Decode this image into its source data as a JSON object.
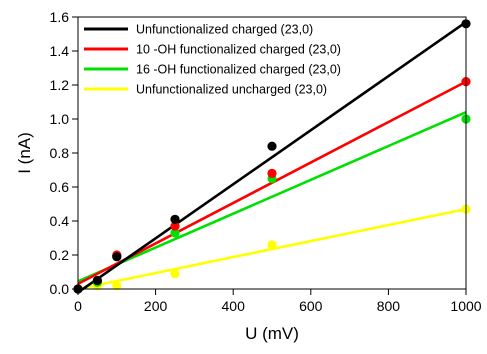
{
  "chart_data": {
    "type": "scatter",
    "xlabel": "U (mV)",
    "ylabel": "I (nA)",
    "xlim": [
      0,
      1000
    ],
    "ylim": [
      0,
      1.6
    ],
    "xticks": [
      "0",
      "200",
      "400",
      "600",
      "800",
      "1000"
    ],
    "yticks": [
      "0.0",
      "0.2",
      "0.4",
      "0.6",
      "0.8",
      "1.0",
      "1.2",
      "1.4",
      "1.6"
    ],
    "legend_position": "top-left",
    "grid": false,
    "series": [
      {
        "name": "Unfunctionalized charged (23,0)",
        "color": "#000000",
        "x": [
          0,
          50,
          100,
          250,
          500,
          1000
        ],
        "y": [
          0.0,
          0.05,
          0.19,
          0.41,
          0.84,
          1.56
        ],
        "fit": [
          [
            0,
            -0.02
          ],
          [
            1000,
            1.57
          ]
        ]
      },
      {
        "name": "10 -OH functionalized charged (23,0)",
        "color": "#ff0000",
        "x": [
          0,
          50,
          100,
          250,
          500,
          1000
        ],
        "y": [
          0.0,
          0.05,
          0.2,
          0.37,
          0.68,
          1.22
        ],
        "fit": [
          [
            0,
            0.03
          ],
          [
            1000,
            1.22
          ]
        ]
      },
      {
        "name": "16 -OH functionalized charged (23,0)",
        "color": "#00e000",
        "x": [
          0,
          50,
          100,
          250,
          500,
          1000
        ],
        "y": [
          0.0,
          0.04,
          0.19,
          0.33,
          0.65,
          1.0
        ],
        "fit": [
          [
            0,
            0.045
          ],
          [
            1000,
            1.04
          ]
        ]
      },
      {
        "name": "Unfunctionalized uncharged (23,0)",
        "color": "#ffff00",
        "x": [
          0,
          50,
          100,
          250,
          500,
          1000
        ],
        "y": [
          0.0,
          0.02,
          0.02,
          0.09,
          0.26,
          0.47
        ],
        "fit": [
          [
            0,
            0.0
          ],
          [
            1000,
            0.47
          ]
        ]
      }
    ]
  }
}
